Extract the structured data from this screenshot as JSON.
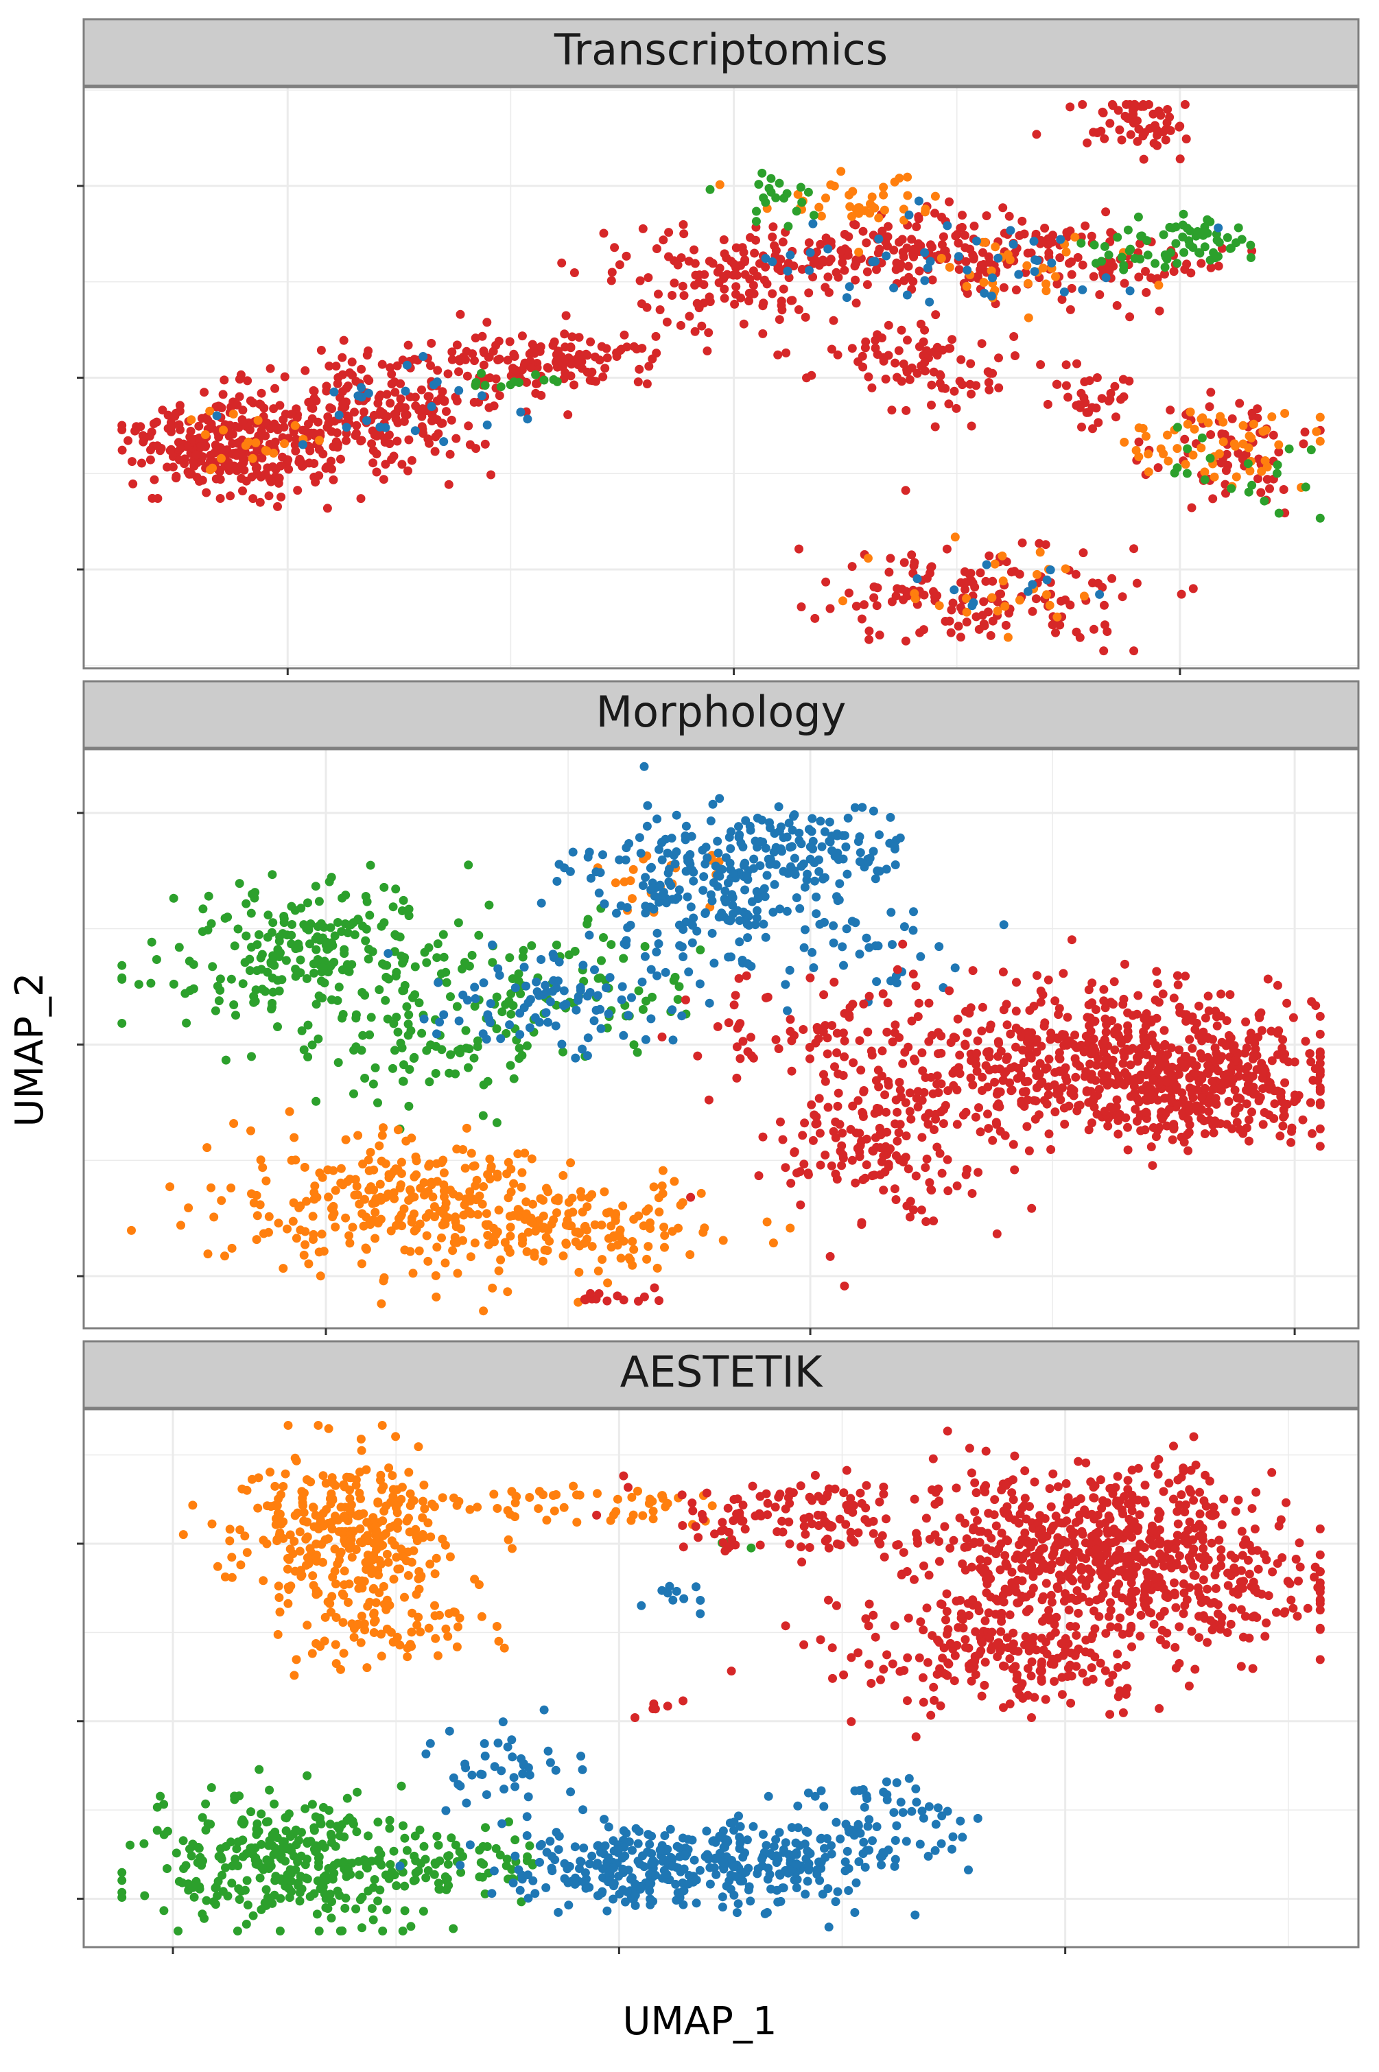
{
  "xlabel": "UMAP_1",
  "ylabel": "UMAP_2",
  "colors": {
    "blue": "#1f77b4",
    "orange": "#ff7f0e",
    "green": "#2ca02c",
    "red": "#d62728",
    "strip_fill": "#cccccc",
    "panel_border": "#7f7f7f",
    "grid": "#ebebeb"
  },
  "chart_data": [
    {
      "type": "scatter",
      "title": "Transcriptomics",
      "xlim": [
        0,
        10
      ],
      "ylim": [
        0,
        10
      ],
      "grid": true,
      "series": [
        {
          "color": "#d62728",
          "clusters": [
            {
              "x": 1.1,
              "y": 3.8,
              "sx": 0.35,
              "sy": 0.4,
              "n": 260
            },
            {
              "x": 2.2,
              "y": 4.3,
              "sx": 0.5,
              "sy": 0.45,
              "n": 220
            },
            {
              "x": 3.5,
              "y": 5.3,
              "sx": 0.55,
              "sy": 0.3,
              "n": 160
            },
            {
              "x": 5.2,
              "y": 6.8,
              "sx": 0.6,
              "sy": 0.45,
              "n": 160
            },
            {
              "x": 6.6,
              "y": 7.2,
              "sx": 0.6,
              "sy": 0.35,
              "n": 140
            },
            {
              "x": 7.9,
              "y": 7.0,
              "sx": 0.5,
              "sy": 0.35,
              "n": 90
            },
            {
              "x": 8.3,
              "y": 9.5,
              "sx": 0.25,
              "sy": 0.25,
              "n": 60
            },
            {
              "x": 6.6,
              "y": 5.2,
              "sx": 0.5,
              "sy": 0.35,
              "n": 90
            },
            {
              "x": 7.0,
              "y": 1.3,
              "sx": 0.6,
              "sy": 0.45,
              "n": 150
            },
            {
              "x": 9.0,
              "y": 3.7,
              "sx": 0.35,
              "sy": 0.45,
              "n": 70
            },
            {
              "x": 7.9,
              "y": 4.6,
              "sx": 0.2,
              "sy": 0.3,
              "n": 30
            }
          ]
        },
        {
          "color": "#ff7f0e",
          "clusters": [
            {
              "x": 6.0,
              "y": 8.0,
              "sx": 0.35,
              "sy": 0.3,
              "n": 40
            },
            {
              "x": 9.0,
              "y": 3.7,
              "sx": 0.4,
              "sy": 0.4,
              "n": 55
            },
            {
              "x": 7.3,
              "y": 1.3,
              "sx": 0.5,
              "sy": 0.35,
              "n": 25
            },
            {
              "x": 1.3,
              "y": 3.9,
              "sx": 0.3,
              "sy": 0.3,
              "n": 20
            },
            {
              "x": 7.3,
              "y": 6.9,
              "sx": 0.4,
              "sy": 0.3,
              "n": 30
            }
          ]
        },
        {
          "color": "#2ca02c",
          "clusters": [
            {
              "x": 8.6,
              "y": 7.3,
              "sx": 0.35,
              "sy": 0.25,
              "n": 70
            },
            {
              "x": 5.5,
              "y": 8.1,
              "sx": 0.25,
              "sy": 0.25,
              "n": 20
            },
            {
              "x": 3.4,
              "y": 5.0,
              "sx": 0.2,
              "sy": 0.1,
              "n": 12
            },
            {
              "x": 9.0,
              "y": 3.4,
              "sx": 0.35,
              "sy": 0.35,
              "n": 20
            }
          ]
        },
        {
          "color": "#1f77b4",
          "clusters": [
            {
              "x": 6.8,
              "y": 7.0,
              "sx": 0.8,
              "sy": 0.4,
              "n": 45
            },
            {
              "x": 2.4,
              "y": 4.6,
              "sx": 0.6,
              "sy": 0.4,
              "n": 25
            },
            {
              "x": 7.4,
              "y": 1.4,
              "sx": 0.4,
              "sy": 0.3,
              "n": 10
            }
          ]
        }
      ]
    },
    {
      "type": "scatter",
      "title": "Morphology",
      "xlim": [
        0,
        10
      ],
      "ylim": [
        0,
        10
      ],
      "grid": true,
      "series": [
        {
          "color": "#2ca02c",
          "clusters": [
            {
              "x": 1.8,
              "y": 6.5,
              "sx": 0.6,
              "sy": 0.55,
              "n": 240
            },
            {
              "x": 2.8,
              "y": 5.1,
              "sx": 0.6,
              "sy": 0.6,
              "n": 120
            },
            {
              "x": 4.0,
              "y": 6.0,
              "sx": 0.4,
              "sy": 0.4,
              "n": 40
            }
          ]
        },
        {
          "color": "#ff7f0e",
          "clusters": [
            {
              "x": 2.5,
              "y": 2.1,
              "sx": 0.7,
              "sy": 0.55,
              "n": 300
            },
            {
              "x": 4.0,
              "y": 1.7,
              "sx": 0.6,
              "sy": 0.4,
              "n": 120
            },
            {
              "x": 4.6,
              "y": 7.8,
              "sx": 0.3,
              "sy": 0.4,
              "n": 20
            }
          ]
        },
        {
          "color": "#1f77b4",
          "clusters": [
            {
              "x": 4.8,
              "y": 7.6,
              "sx": 0.5,
              "sy": 0.6,
              "n": 200
            },
            {
              "x": 5.6,
              "y": 8.3,
              "sx": 0.45,
              "sy": 0.4,
              "n": 110
            },
            {
              "x": 3.7,
              "y": 5.6,
              "sx": 0.55,
              "sy": 0.45,
              "n": 90
            },
            {
              "x": 6.0,
              "y": 6.5,
              "sx": 0.5,
              "sy": 0.4,
              "n": 40
            }
          ]
        },
        {
          "color": "#d62728",
          "clusters": [
            {
              "x": 7.9,
              "y": 4.6,
              "sx": 0.7,
              "sy": 0.7,
              "n": 520
            },
            {
              "x": 8.9,
              "y": 4.2,
              "sx": 0.5,
              "sy": 0.5,
              "n": 260
            },
            {
              "x": 6.2,
              "y": 3.2,
              "sx": 0.45,
              "sy": 0.7,
              "n": 170
            },
            {
              "x": 5.8,
              "y": 5.2,
              "sx": 0.5,
              "sy": 0.5,
              "n": 80
            },
            {
              "x": 4.1,
              "y": 0.5,
              "sx": 0.15,
              "sy": 0.1,
              "n": 15
            }
          ]
        }
      ]
    },
    {
      "type": "scatter",
      "title": "AESTETIK",
      "xlim": [
        0,
        10
      ],
      "ylim": [
        0,
        10
      ],
      "grid": true,
      "series": [
        {
          "color": "#ff7f0e",
          "clusters": [
            {
              "x": 2.1,
              "y": 7.7,
              "sx": 0.45,
              "sy": 0.8,
              "n": 330
            },
            {
              "x": 2.4,
              "y": 5.8,
              "sx": 0.4,
              "sy": 0.4,
              "n": 60
            },
            {
              "x": 4.1,
              "y": 8.2,
              "sx": 0.6,
              "sy": 0.2,
              "n": 50
            }
          ]
        },
        {
          "color": "#2ca02c",
          "clusters": [
            {
              "x": 1.6,
              "y": 1.6,
              "sx": 0.55,
              "sy": 0.6,
              "n": 330
            },
            {
              "x": 2.9,
              "y": 1.6,
              "sx": 0.4,
              "sy": 0.35,
              "n": 60
            },
            {
              "x": 5.1,
              "y": 7.5,
              "sx": 0.1,
              "sy": 0.1,
              "n": 4
            }
          ]
        },
        {
          "color": "#1f77b4",
          "clusters": [
            {
              "x": 4.3,
              "y": 1.5,
              "sx": 0.5,
              "sy": 0.4,
              "n": 230
            },
            {
              "x": 5.6,
              "y": 1.6,
              "sx": 0.5,
              "sy": 0.45,
              "n": 150
            },
            {
              "x": 6.2,
              "y": 2.4,
              "sx": 0.35,
              "sy": 0.35,
              "n": 60
            },
            {
              "x": 3.3,
              "y": 3.3,
              "sx": 0.3,
              "sy": 0.4,
              "n": 40
            },
            {
              "x": 4.7,
              "y": 6.5,
              "sx": 0.15,
              "sy": 0.15,
              "n": 10
            }
          ]
        },
        {
          "color": "#d62728",
          "clusters": [
            {
              "x": 8.0,
              "y": 7.5,
              "sx": 0.7,
              "sy": 0.7,
              "n": 560
            },
            {
              "x": 7.3,
              "y": 5.6,
              "sx": 0.7,
              "sy": 0.6,
              "n": 260
            },
            {
              "x": 5.6,
              "y": 8.0,
              "sx": 0.6,
              "sy": 0.4,
              "n": 130
            },
            {
              "x": 8.9,
              "y": 6.5,
              "sx": 0.5,
              "sy": 0.6,
              "n": 120
            },
            {
              "x": 4.5,
              "y": 4.5,
              "sx": 0.1,
              "sy": 0.1,
              "n": 6
            }
          ]
        }
      ]
    }
  ]
}
